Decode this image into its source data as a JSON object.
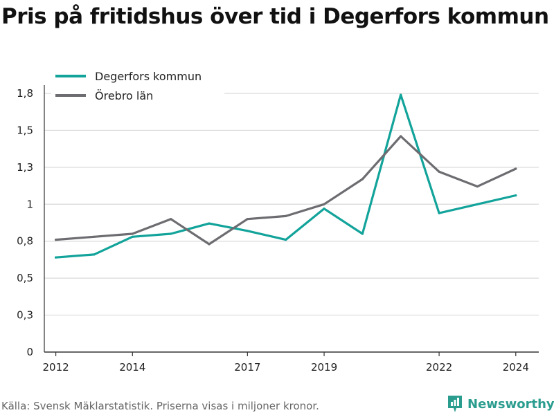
{
  "title": "Pris på fritidshus över tid i Degerfors kommun",
  "source": "Källa: Svensk Mäklarstatistik. Priserna visas i miljoner kronor.",
  "brand": {
    "name": "Newsworthy",
    "icon": "newsworthy-logo-icon"
  },
  "chart_data": {
    "type": "line",
    "title": "Pris på fritidshus över tid i Degerfors kommun",
    "xlabel": "",
    "ylabel": "",
    "x": [
      2012,
      2013,
      2014,
      2015,
      2016,
      2017,
      2018,
      2019,
      2020,
      2021,
      2022,
      2023,
      2024
    ],
    "xticks": [
      "2012",
      "2014",
      "2017",
      "2019",
      "2022",
      "2024"
    ],
    "yticks": [
      {
        "value": 0,
        "label": "0"
      },
      {
        "value": 0.25,
        "label": "0,3"
      },
      {
        "value": 0.5,
        "label": "0,5"
      },
      {
        "value": 0.75,
        "label": "0,8"
      },
      {
        "value": 1.0,
        "label": "1"
      },
      {
        "value": 1.25,
        "label": "1,3"
      },
      {
        "value": 1.5,
        "label": "1,5"
      },
      {
        "value": 1.75,
        "label": "1,8"
      }
    ],
    "xlim": [
      2011.7,
      2024.6
    ],
    "ylim": [
      0,
      1.75
    ],
    "grid": true,
    "legend_position": "top-left",
    "series": [
      {
        "name": "Degerfors kommun",
        "color": "#12a39a",
        "values": [
          0.64,
          0.66,
          0.78,
          0.8,
          0.87,
          0.82,
          0.76,
          0.97,
          0.8,
          1.74,
          0.94,
          1.0,
          1.06
        ]
      },
      {
        "name": "Örebro län",
        "color": "#6d6c71",
        "values": [
          0.76,
          0.78,
          0.8,
          0.9,
          0.73,
          0.9,
          0.92,
          1.0,
          1.17,
          1.46,
          1.22,
          1.12,
          1.24
        ]
      }
    ]
  }
}
